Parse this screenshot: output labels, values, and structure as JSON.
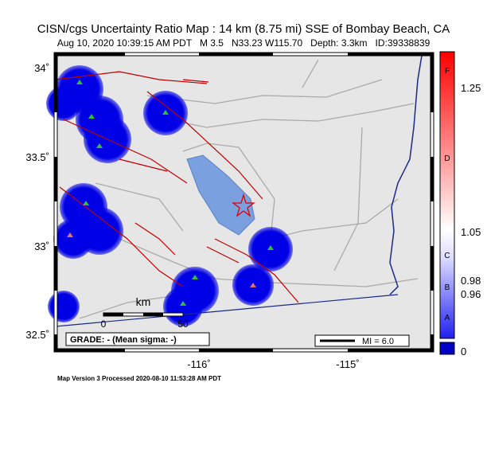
{
  "header": {
    "title": "CISN/cgs Uncertainty Ratio Map : 14 km (8.75 mi) SSE of Bombay Beach, CA",
    "subtitle": "Aug 10, 2020 10:39:15 AM PDT   M 3.5   N33.23 W115.70   Depth: 3.3km   ID:39338839"
  },
  "map": {
    "lat_labels": [
      "34˚",
      "33.5˚",
      "33˚",
      "32.5˚"
    ],
    "lon_labels": [
      "-116˚",
      "-115˚"
    ],
    "scale_bar": {
      "unit": "km",
      "start": "0",
      "end": "50"
    },
    "grade": "GRADE: - (Mean sigma: -)",
    "mi_legend": "MI = 6.0"
  },
  "colorbar": {
    "grades": [
      "F",
      "D",
      "C",
      "B",
      "A"
    ],
    "values": [
      "1.25",
      "1.05",
      "0.98",
      "0.96",
      "0"
    ]
  },
  "footer": "Map Version 3 Processed 2020-08-10 11:53:28 AM PDT"
}
